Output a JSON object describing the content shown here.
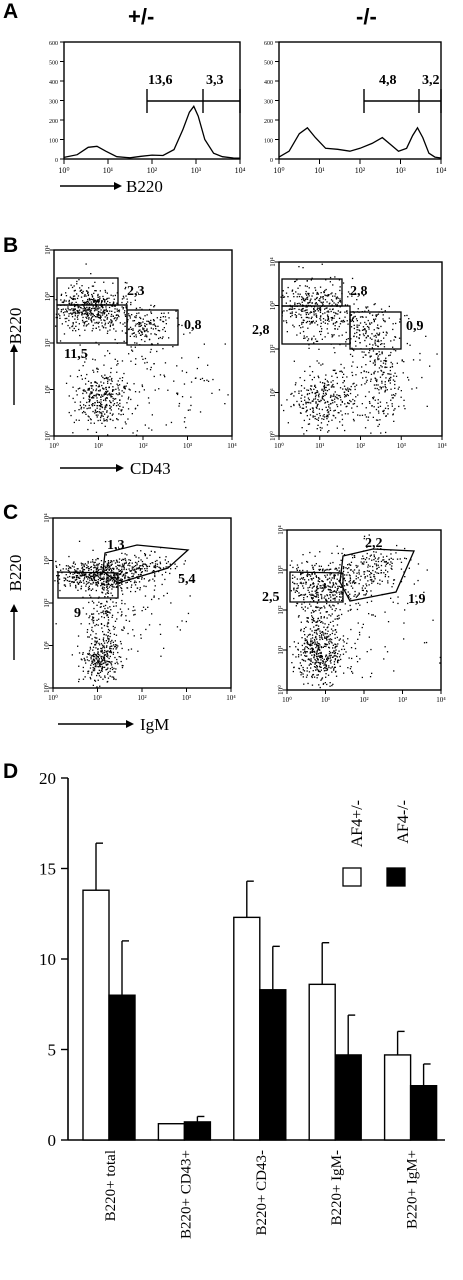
{
  "chart_data": [
    {
      "type": "histogram",
      "panel": "A",
      "genotype_label": "+/-",
      "xlabel": "B220",
      "x_ticks": [
        "10⁰",
        "10¹",
        "10²",
        "10³",
        "10⁴"
      ],
      "y_ticks": [
        "0",
        "100",
        "200",
        "300",
        "400",
        "500",
        "600"
      ],
      "gates": [
        "13,6",
        "3,3"
      ],
      "curve": [
        [
          0,
          8
        ],
        [
          0.3,
          22
        ],
        [
          0.55,
          60
        ],
        [
          0.75,
          65
        ],
        [
          0.95,
          40
        ],
        [
          1.2,
          12
        ],
        [
          1.5,
          6
        ],
        [
          1.75,
          14
        ],
        [
          2.0,
          20
        ],
        [
          2.25,
          18
        ],
        [
          2.5,
          48
        ],
        [
          2.7,
          150
        ],
        [
          2.85,
          240
        ],
        [
          2.95,
          270
        ],
        [
          3.05,
          220
        ],
        [
          3.2,
          100
        ],
        [
          3.4,
          30
        ],
        [
          3.6,
          12
        ],
        [
          3.85,
          5
        ],
        [
          4,
          4
        ]
      ]
    },
    {
      "type": "histogram",
      "panel": "A",
      "genotype_label": "-/-",
      "x_ticks": [
        "10⁰",
        "10¹",
        "10²",
        "10³",
        "10⁴"
      ],
      "y_ticks": [
        "0",
        "100",
        "200",
        "300",
        "400",
        "500",
        "600"
      ],
      "gates": [
        "4,8",
        "3,2"
      ],
      "curve": [
        [
          0,
          10
        ],
        [
          0.25,
          40
        ],
        [
          0.5,
          130
        ],
        [
          0.7,
          160
        ],
        [
          0.9,
          110
        ],
        [
          1.15,
          55
        ],
        [
          1.45,
          50
        ],
        [
          1.75,
          40
        ],
        [
          2.0,
          55
        ],
        [
          2.3,
          80
        ],
        [
          2.55,
          110
        ],
        [
          2.75,
          75
        ],
        [
          2.95,
          40
        ],
        [
          3.15,
          55
        ],
        [
          3.3,
          120
        ],
        [
          3.42,
          160
        ],
        [
          3.55,
          110
        ],
        [
          3.7,
          30
        ],
        [
          3.85,
          10
        ],
        [
          4,
          5
        ]
      ]
    },
    {
      "type": "scatter",
      "panel": "B",
      "xlabel": "CD43",
      "ylabel": "B220",
      "gates": [
        "2,3",
        "0,8",
        "11,5"
      ]
    },
    {
      "type": "scatter",
      "panel": "B",
      "gates": [
        "2,8",
        "0,9",
        "2,8"
      ]
    },
    {
      "type": "scatter",
      "panel": "C",
      "xlabel": "IgM",
      "ylabel": "B220",
      "gates": [
        "1,3",
        "5,4",
        "9"
      ]
    },
    {
      "type": "scatter",
      "panel": "C",
      "gates": [
        "2,2",
        "1,9",
        "2,5"
      ]
    },
    {
      "type": "bar",
      "panel": "D",
      "categories": [
        "B220+ total",
        "B220+ CD43+",
        "B220+ CD43-",
        "B220+ IgM-",
        "B220+ IgM+"
      ],
      "series": [
        {
          "name": "AF4+/-",
          "values": [
            13.8,
            0.9,
            12.3,
            8.6,
            4.7
          ],
          "errors": [
            2.6,
            0.0,
            2.0,
            2.3,
            1.3
          ],
          "color": "#ffffff"
        },
        {
          "name": "AF4-/-",
          "values": [
            8.0,
            1.0,
            8.3,
            4.7,
            3.0
          ],
          "errors": [
            3.0,
            0.3,
            2.4,
            2.2,
            1.2
          ],
          "color": "#000000"
        }
      ],
      "y_ticks": [
        "0",
        "5",
        "10",
        "15",
        "20"
      ],
      "ylim": [
        0,
        20
      ],
      "legend_position": "top-right"
    }
  ],
  "panel_letters": {
    "a": "A",
    "b": "B",
    "c": "C",
    "d": "D"
  },
  "tick_labels": {
    "t0": "10⁰",
    "t1": "10¹",
    "t2": "10²",
    "t3": "10³",
    "t4": "10⁴"
  }
}
